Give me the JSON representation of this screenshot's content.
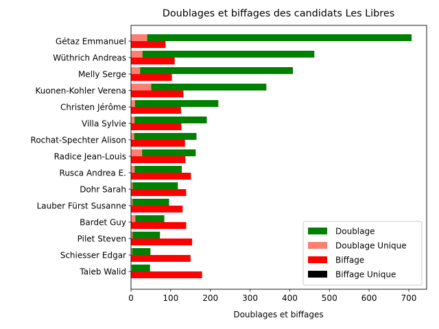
{
  "chart_data": {
    "type": "bar",
    "orientation": "horizontal",
    "title": "Doublages et biffages des candidats Les Libres",
    "xlabel": "Doublages et biffages",
    "ylabel": "",
    "xlim": [
      0,
      745
    ],
    "xticks": [
      0,
      100,
      200,
      300,
      400,
      500,
      600,
      700
    ],
    "grid": false,
    "legend_position": "lower-right",
    "categories": [
      "Gétaz Emmanuel",
      "Wüthrich Andreas",
      "Melly Serge",
      "Kuonen-Kohler Verena",
      "Christen Jérôme",
      "Villa Sylvie",
      "Rochat-Spechter Alison",
      "Radice Jean-Louis",
      "Rusca Andrea E.",
      "Dohr Sarah",
      "Lauber Fürst Susanne",
      "Bardet Guy",
      "Pilet Steven",
      "Schiesser Edgar",
      "Taieb Walid"
    ],
    "series": [
      {
        "name": "Doublage",
        "color": "#008000",
        "values": [
          707,
          462,
          408,
          341,
          220,
          191,
          165,
          163,
          128,
          118,
          96,
          84,
          73,
          49,
          48
        ]
      },
      {
        "name": "Doublage Unique",
        "color": "#fa8072",
        "values": [
          41,
          29,
          23,
          51,
          10,
          9,
          8,
          28,
          9,
          4,
          4,
          11,
          4,
          3,
          2
        ]
      },
      {
        "name": "Biffage",
        "color": "#ff0000",
        "values": [
          87,
          110,
          103,
          132,
          126,
          127,
          136,
          137,
          151,
          139,
          130,
          139,
          154,
          150,
          179
        ]
      },
      {
        "name": "Biffage Unique",
        "color": "#000000",
        "values": [
          0,
          0,
          0,
          0,
          0,
          0,
          0,
          0,
          0,
          0,
          0,
          0,
          0,
          0,
          0
        ]
      }
    ]
  }
}
